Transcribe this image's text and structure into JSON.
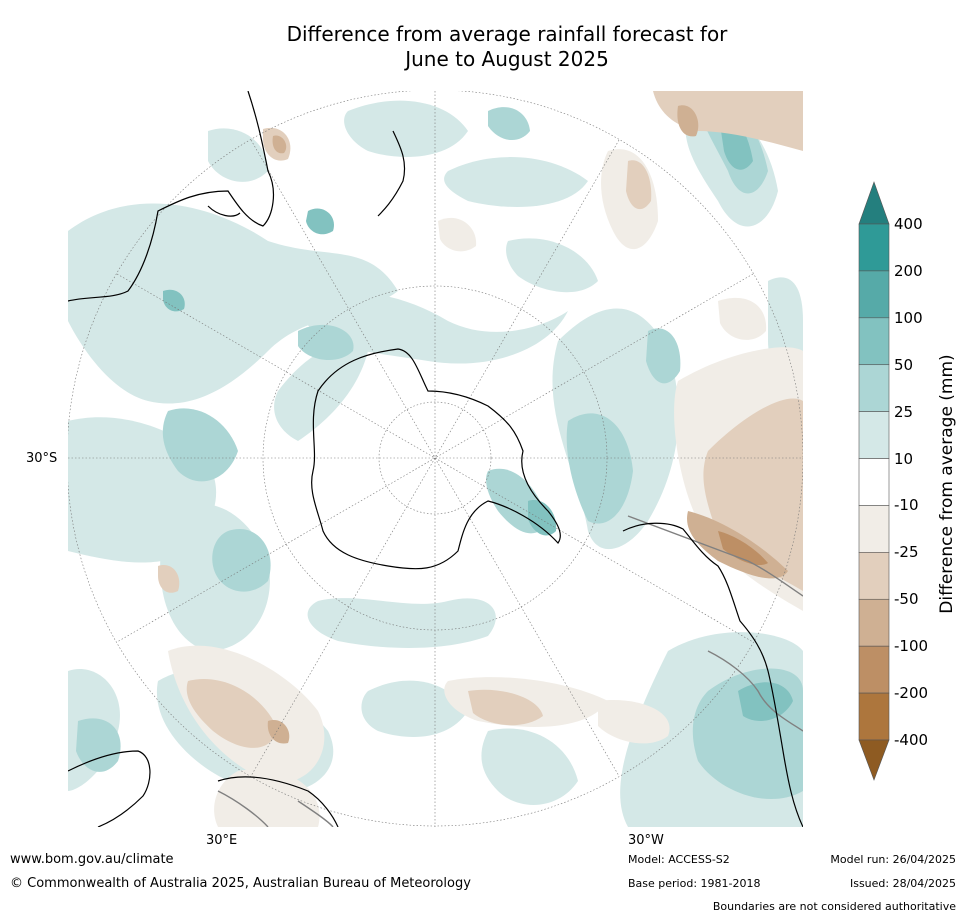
{
  "title_line1": "Difference from average rainfall forecast for",
  "title_line2": "June to August 2025",
  "map": {
    "projection": "south-polar-stereographic",
    "lat_label": "30°S",
    "lon_labels": [
      "30°E",
      "30°W"
    ],
    "colors": {
      "ocean_bg": "#ffffff",
      "coast": "#000000",
      "boundary": "#808080",
      "graticule": "#777777"
    }
  },
  "colorbar": {
    "title": "Difference from average (mm)",
    "labels": [
      "400",
      "200",
      "100",
      "50",
      "25",
      "10",
      "-10",
      "-25",
      "-50",
      "-100",
      "-200",
      "-400"
    ],
    "colors_top_to_bottom": [
      "#2f9a97",
      "#56aaa8",
      "#82c2c0",
      "#acd6d5",
      "#d4e8e7",
      "#ffffff",
      "#f1ede7",
      "#e2cfbd",
      "#cfb093",
      "#bd8f65",
      "#ad763d"
    ],
    "extend_max_color": "#247f7e",
    "extend_min_color": "#8e5b22"
  },
  "footer": {
    "website": "www.bom.gov.au/climate",
    "copyright": "© Commonwealth of Australia 2025, Australian Bureau of Meteorology",
    "model": "Model: ACCESS-S2",
    "base_period": "Base period: 1981-2018",
    "model_run": "Model run: 26/04/2025",
    "issued": "Issued: 28/04/2025",
    "disclaimer": "Boundaries are not considered authoritative"
  }
}
